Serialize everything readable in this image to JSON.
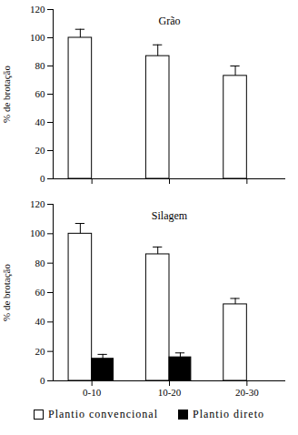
{
  "chart_data": [
    {
      "type": "bar",
      "title": "Grão",
      "ylabel": "% de brotação",
      "categories": [
        "0-10",
        "10-20",
        "20-30"
      ],
      "series": [
        {
          "name": "Plantio convencional",
          "color": "#ffffff",
          "values": [
            100,
            87,
            73
          ],
          "errors": [
            6,
            8,
            7
          ]
        },
        {
          "name": "Plantio direto",
          "color": "#000000",
          "values": [
            null,
            null,
            null
          ],
          "errors": [
            null,
            null,
            null
          ]
        }
      ],
      "ylim": [
        0,
        120
      ],
      "yticks": [
        0,
        20,
        40,
        60,
        80,
        100,
        120
      ],
      "tick_labels": "y"
    },
    {
      "type": "bar",
      "title": "Silagem",
      "ylabel": "% de brotação",
      "categories": [
        "0-10",
        "10-20",
        "20-30"
      ],
      "series": [
        {
          "name": "Plantio convencional",
          "color": "#ffffff",
          "values": [
            100,
            86,
            52
          ],
          "errors": [
            7,
            5,
            4
          ]
        },
        {
          "name": "Plantio direto",
          "color": "#000000",
          "values": [
            15,
            16,
            null
          ],
          "errors": [
            3,
            3,
            null
          ]
        }
      ],
      "ylim": [
        0,
        120
      ],
      "yticks": [
        0,
        20,
        40,
        60,
        80,
        100,
        120
      ],
      "legend": "bottom"
    }
  ]
}
